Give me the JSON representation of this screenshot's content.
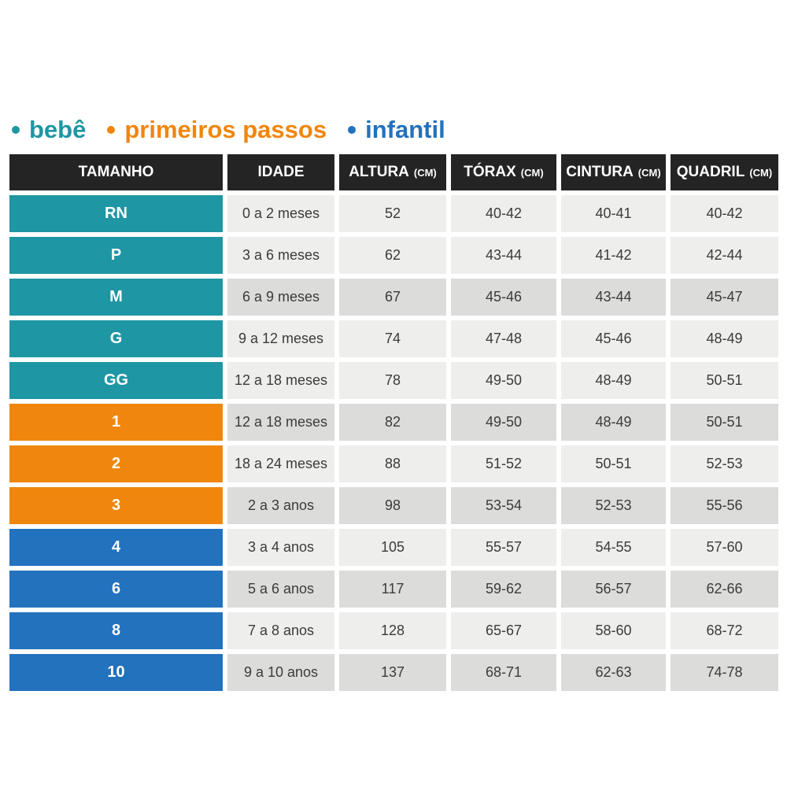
{
  "legend": {
    "items": [
      {
        "label": "bebê",
        "color": "#1E96A3"
      },
      {
        "label": "primeiros passos",
        "color": "#F0860D"
      },
      {
        "label": "infantil",
        "color": "#2272BE"
      }
    ]
  },
  "colors": {
    "bebe": "#1E96A3",
    "primeiros_passos": "#F0860D",
    "infantil": "#2272BE",
    "header_bg": "#242424",
    "row_light": "#EEEEEC",
    "row_dark": "#DCDCDA",
    "cell_text": "#3B3B3B"
  },
  "chart_data": {
    "type": "table",
    "title": "",
    "legend_position": "top",
    "columns": [
      {
        "label": "TAMANHO",
        "unit": ""
      },
      {
        "label": "IDADE",
        "unit": ""
      },
      {
        "label": "ALTURA",
        "unit": "(CM)"
      },
      {
        "label": "TÓRAX",
        "unit": "(CM)"
      },
      {
        "label": "CINTURA",
        "unit": "(CM)"
      },
      {
        "label": "QUADRIL",
        "unit": "(CM)"
      }
    ],
    "rows": [
      {
        "size": "RN",
        "group": "bebê",
        "shade": "light",
        "cells": [
          "0 a 2 meses",
          "52",
          "40-42",
          "40-41",
          "40-42"
        ]
      },
      {
        "size": "P",
        "group": "bebê",
        "shade": "light",
        "cells": [
          "3 a 6 meses",
          "62",
          "43-44",
          "41-42",
          "42-44"
        ]
      },
      {
        "size": "M",
        "group": "bebê",
        "shade": "dark",
        "cells": [
          "6 a 9 meses",
          "67",
          "45-46",
          "43-44",
          "45-47"
        ]
      },
      {
        "size": "G",
        "group": "bebê",
        "shade": "light",
        "cells": [
          "9 a 12 meses",
          "74",
          "47-48",
          "45-46",
          "48-49"
        ]
      },
      {
        "size": "GG",
        "group": "bebê",
        "shade": "light",
        "cells": [
          "12 a 18 meses",
          "78",
          "49-50",
          "48-49",
          "50-51"
        ]
      },
      {
        "size": "1",
        "group": "primeiros passos",
        "shade": "dark",
        "cells": [
          "12 a 18 meses",
          "82",
          "49-50",
          "48-49",
          "50-51"
        ]
      },
      {
        "size": "2",
        "group": "primeiros passos",
        "shade": "light",
        "cells": [
          "18 a 24 meses",
          "88",
          "51-52",
          "50-51",
          "52-53"
        ]
      },
      {
        "size": "3",
        "group": "primeiros passos",
        "shade": "dark",
        "cells": [
          "2 a 3 anos",
          "98",
          "53-54",
          "52-53",
          "55-56"
        ]
      },
      {
        "size": "4",
        "group": "infantil",
        "shade": "light",
        "cells": [
          "3 a 4 anos",
          "105",
          "55-57",
          "54-55",
          "57-60"
        ]
      },
      {
        "size": "6",
        "group": "infantil",
        "shade": "dark",
        "cells": [
          "5 a 6 anos",
          "117",
          "59-62",
          "56-57",
          "62-66"
        ]
      },
      {
        "size": "8",
        "group": "infantil",
        "shade": "light",
        "cells": [
          "7 a 8 anos",
          "128",
          "65-67",
          "58-60",
          "68-72"
        ]
      },
      {
        "size": "10",
        "group": "infantil",
        "shade": "dark",
        "cells": [
          "9 a 10 anos",
          "137",
          "68-71",
          "62-63",
          "74-78"
        ]
      }
    ]
  }
}
